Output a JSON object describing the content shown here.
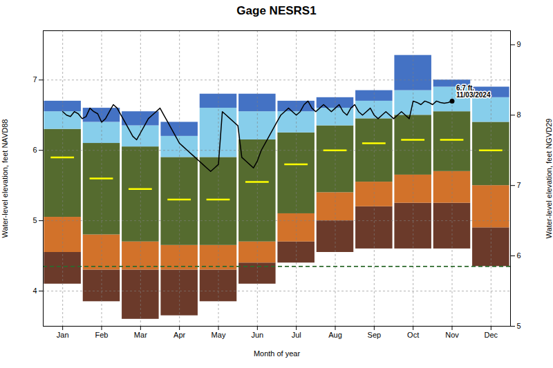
{
  "chart_data": {
    "type": "bar",
    "title": "Gage NESRS1",
    "xlabel": "Month of year",
    "ylabel": "Water-level elevation, feet NAVD88",
    "y2label": "Water-level elevation, feet NGVD29",
    "xlim": [
      0.5,
      12.5
    ],
    "xticks": [
      {
        "value": 1,
        "label": "Jan"
      },
      {
        "value": 2,
        "label": "Feb"
      },
      {
        "value": 3,
        "label": "Mar"
      },
      {
        "value": 4,
        "label": "Apr"
      },
      {
        "value": 5,
        "label": "May"
      },
      {
        "value": 6,
        "label": "Jun"
      },
      {
        "value": 7,
        "label": "Jul"
      },
      {
        "value": 8,
        "label": "Aug"
      },
      {
        "value": 9,
        "label": "Sep"
      },
      {
        "value": 10,
        "label": "Oct"
      },
      {
        "value": 11,
        "label": "Nov"
      },
      {
        "value": 12,
        "label": "Dec"
      }
    ],
    "ylim": [
      3.5,
      7.7
    ],
    "yticks": [
      4,
      5,
      6,
      7
    ],
    "y2lim": [
      5.0,
      9.2
    ],
    "y2ticks": [
      5,
      6,
      7,
      8,
      9
    ],
    "grid": true,
    "x": [
      1,
      2,
      3,
      4,
      5,
      6,
      7,
      8,
      9,
      10,
      11,
      12
    ],
    "series": [
      {
        "type": "bar",
        "color": "#6b3a2a",
        "low": [
          4.1,
          3.85,
          3.6,
          3.65,
          3.85,
          4.1,
          4.4,
          4.55,
          4.6,
          4.6,
          4.6,
          4.35
        ],
        "high": [
          4.55,
          4.3,
          4.3,
          4.3,
          4.3,
          4.4,
          4.7,
          5.0,
          5.2,
          5.25,
          5.25,
          4.9
        ]
      },
      {
        "type": "bar",
        "color": "#d2722a",
        "low": [
          4.55,
          4.3,
          4.3,
          4.3,
          4.3,
          4.4,
          4.7,
          5.0,
          5.2,
          5.25,
          5.25,
          4.9
        ],
        "high": [
          5.05,
          4.8,
          4.7,
          4.65,
          4.65,
          4.7,
          5.1,
          5.4,
          5.55,
          5.65,
          5.7,
          5.5
        ]
      },
      {
        "type": "bar",
        "color": "#556b2f",
        "low": [
          5.05,
          4.8,
          4.7,
          4.65,
          4.65,
          4.7,
          5.1,
          5.4,
          5.55,
          5.65,
          5.7,
          5.5
        ],
        "high": [
          6.3,
          6.1,
          6.05,
          5.9,
          5.9,
          6.15,
          6.25,
          6.35,
          6.45,
          6.5,
          6.55,
          6.4
        ]
      },
      {
        "type": "bar",
        "color": "#87ceeb",
        "low": [
          6.3,
          6.1,
          6.05,
          5.9,
          5.9,
          6.15,
          6.25,
          6.35,
          6.45,
          6.5,
          6.55,
          6.4
        ],
        "high": [
          6.55,
          6.4,
          6.35,
          6.2,
          6.6,
          6.55,
          6.55,
          6.6,
          6.7,
          6.85,
          6.9,
          6.75
        ]
      },
      {
        "type": "bar",
        "color": "#4472c4",
        "low": [
          6.55,
          6.4,
          6.35,
          6.2,
          6.6,
          6.55,
          6.55,
          6.6,
          6.7,
          6.85,
          6.9,
          6.75
        ],
        "high": [
          6.7,
          6.6,
          6.55,
          6.4,
          6.8,
          6.8,
          6.7,
          6.75,
          6.85,
          7.35,
          7.0,
          6.9
        ]
      },
      {
        "type": "tick",
        "color": "#ffff00",
        "values": [
          5.9,
          5.6,
          5.45,
          5.3,
          5.3,
          5.55,
          5.8,
          6.0,
          6.1,
          6.15,
          6.15,
          6.0
        ]
      },
      {
        "type": "rule",
        "color": "#2d6a2d",
        "line_style": "dashed",
        "value": 4.35
      },
      {
        "type": "line",
        "color": "#000000",
        "x": [
          1.0,
          1.1,
          1.2,
          1.3,
          1.4,
          1.5,
          1.6,
          1.7,
          1.8,
          1.9,
          2.0,
          2.1,
          2.2,
          2.3,
          2.4,
          2.5,
          2.6,
          2.7,
          2.8,
          2.9,
          3.0,
          3.1,
          3.2,
          3.3,
          3.4,
          3.5,
          3.6,
          3.7,
          3.8,
          3.9,
          4.0,
          4.1,
          4.2,
          4.3,
          4.4,
          4.5,
          4.6,
          4.7,
          4.8,
          4.9,
          5.0,
          5.1,
          5.2,
          5.3,
          5.4,
          5.5,
          5.6,
          5.7,
          5.8,
          5.9,
          6.0,
          6.1,
          6.2,
          6.3,
          6.4,
          6.5,
          6.6,
          6.7,
          6.8,
          6.9,
          7.0,
          7.1,
          7.2,
          7.3,
          7.4,
          7.5,
          7.6,
          7.7,
          7.8,
          7.9,
          8.0,
          8.1,
          8.2,
          8.3,
          8.4,
          8.5,
          8.6,
          8.7,
          8.8,
          8.9,
          9.0,
          9.1,
          9.2,
          9.3,
          9.4,
          9.5,
          9.6,
          9.7,
          9.8,
          9.9,
          10.0,
          10.1,
          10.2,
          10.3,
          10.4,
          10.5,
          10.6,
          10.7,
          10.8,
          10.9,
          11.0
        ],
        "values": [
          6.55,
          6.5,
          6.48,
          6.55,
          6.52,
          6.45,
          6.48,
          6.6,
          6.55,
          6.52,
          6.4,
          6.45,
          6.55,
          6.65,
          6.6,
          6.5,
          6.4,
          6.3,
          6.2,
          6.15,
          6.25,
          6.35,
          6.45,
          6.5,
          6.55,
          6.6,
          6.5,
          6.4,
          6.3,
          6.2,
          6.1,
          6.05,
          6.0,
          5.95,
          5.9,
          5.85,
          5.8,
          5.75,
          5.7,
          5.75,
          5.8,
          6.55,
          6.5,
          6.45,
          6.4,
          6.35,
          5.9,
          5.85,
          5.8,
          5.75,
          5.85,
          6.0,
          6.1,
          6.2,
          6.3,
          6.4,
          6.5,
          6.55,
          6.6,
          6.55,
          6.5,
          6.55,
          6.65,
          6.7,
          6.6,
          6.55,
          6.6,
          6.65,
          6.6,
          6.55,
          6.6,
          6.65,
          6.55,
          6.5,
          6.6,
          6.65,
          6.55,
          6.5,
          6.55,
          6.6,
          6.5,
          6.45,
          6.5,
          6.55,
          6.5,
          6.45,
          6.5,
          6.55,
          6.5,
          6.45,
          6.7,
          6.68,
          6.65,
          6.7,
          6.68,
          6.65,
          6.7,
          6.68,
          6.67,
          6.68,
          6.7
        ]
      }
    ],
    "annotations": [
      {
        "text": "6.7 ft.\n11/03/2024",
        "x": 11,
        "y": 6.7,
        "marker": "o",
        "color": "#000000"
      }
    ]
  }
}
